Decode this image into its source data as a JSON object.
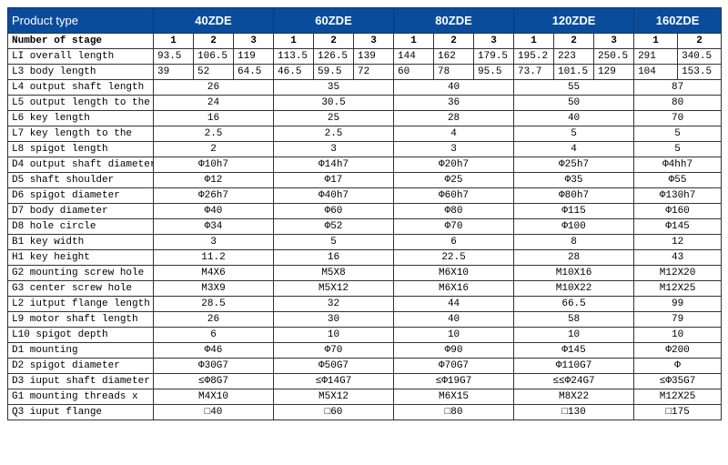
{
  "header": {
    "product_type": "Product type",
    "cols": [
      "40ZDE",
      "60ZDE",
      "80ZDE",
      "120ZDE",
      "160ZDE"
    ]
  },
  "stage": {
    "label": "Number of stage",
    "vals": [
      "1",
      "2",
      "3",
      "1",
      "2",
      "3",
      "1",
      "2",
      "3",
      "1",
      "2",
      "3",
      "1",
      "2"
    ]
  },
  "rows_split": [
    {
      "label": "LI overall length",
      "vals": [
        "93.5",
        "106.5",
        "119",
        "113.5",
        "126.5",
        "139",
        "144",
        "162",
        "179.5",
        "195.2",
        "223",
        "250.5",
        "291",
        "340.5"
      ]
    },
    {
      "label": "L3 body length",
      "vals": [
        "39",
        "52",
        "64.5",
        "46.5",
        "59.5",
        "72",
        "60",
        "78",
        "95.5",
        "73.7",
        "101.5",
        "129",
        "104",
        "153.5"
      ]
    }
  ],
  "rows_merged": [
    {
      "label": "L4 output shaft length",
      "vals": [
        "26",
        "35",
        "40",
        "55",
        "87"
      ]
    },
    {
      "label": "L5 output length to the",
      "vals": [
        "24",
        "30.5",
        "36",
        "50",
        "80"
      ]
    },
    {
      "label": "L6 key length",
      "vals": [
        "16",
        "25",
        "28",
        "40",
        "70"
      ]
    },
    {
      "label": "L7 key length to the",
      "vals": [
        "2.5",
        "2.5",
        "4",
        "5",
        "5"
      ]
    },
    {
      "label": "L8 spigot length",
      "vals": [
        "2",
        "3",
        "3",
        "4",
        "5"
      ]
    },
    {
      "label": "D4 output shaft diameter",
      "vals": [
        "Φ10h7",
        "Φ14h7",
        "Φ20h7",
        "Φ25h7",
        "Φ4hh7"
      ]
    },
    {
      "label": "D5 shaft shoulder",
      "vals": [
        "Φ12",
        "Φ17",
        "Φ25",
        "Φ35",
        "Φ55"
      ]
    },
    {
      "label": "D6 spigot diameter",
      "vals": [
        "Φ26h7",
        "Φ40h7",
        "Φ60h7",
        "Φ80h7",
        "Φ130h7"
      ]
    },
    {
      "label": "D7 body diameter",
      "vals": [
        "Φ40",
        "Φ60",
        "Φ80",
        "Φ115",
        "Φ160"
      ]
    },
    {
      "label": "D8 hole circle",
      "vals": [
        "Φ34",
        "Φ52",
        "Φ70",
        "Φ100",
        "Φ145"
      ]
    },
    {
      "label": "B1 key width",
      "vals": [
        "3",
        "5",
        "6",
        "8",
        "12"
      ]
    },
    {
      "label": "H1 key height",
      "vals": [
        "11.2",
        "16",
        "22.5",
        "28",
        "43"
      ]
    },
    {
      "label": "G2 mounting screw hole",
      "vals": [
        "M4X6",
        "M5X8",
        "M6X10",
        "M10X16",
        "M12X20"
      ]
    },
    {
      "label": "G3 center screw hole",
      "vals": [
        "M3X9",
        "M5X12",
        "M6X16",
        "M10X22",
        "M12X25"
      ]
    },
    {
      "label": "L2 iutput flange length",
      "vals": [
        "28.5",
        "32",
        "44",
        "66.5",
        "99"
      ]
    },
    {
      "label": "L9 motor shaft length",
      "vals": [
        "26",
        "30",
        "40",
        "58",
        "79"
      ]
    },
    {
      "label": "L10 spigot depth",
      "vals": [
        "6",
        "10",
        "10",
        "10",
        "10"
      ]
    },
    {
      "label": "D1 mounting",
      "vals": [
        "Φ46",
        "Φ70",
        "Φ90",
        "Φ145",
        "Φ200"
      ]
    },
    {
      "label": "D2 spigot diameter",
      "vals": [
        "Φ30G7",
        "Φ50G7",
        "Φ70G7",
        "Φ110G7",
        "Φ"
      ]
    },
    {
      "label": "D3 iuput shaft diameter",
      "vals": [
        "≤Φ8G7",
        "≤Φ14G7",
        "≤Φ19G7",
        "≤≤Φ24G7",
        "≤Φ35G7"
      ]
    },
    {
      "label": "G1 mounting threads x",
      "vals": [
        "M4X10",
        "M5X12",
        "M6X15",
        "M8X22",
        "M12X25"
      ]
    },
    {
      "label": "Q3 iuput flange",
      "vals": [
        "□40",
        "□60",
        "□80",
        "□130",
        "□175"
      ]
    }
  ],
  "style": {
    "header_bg": "#0a4c9c",
    "header_fg": "#ffffff",
    "border": "#333333",
    "font_mono": "Courier New",
    "font_size_body": 11,
    "font_size_header": 13
  }
}
